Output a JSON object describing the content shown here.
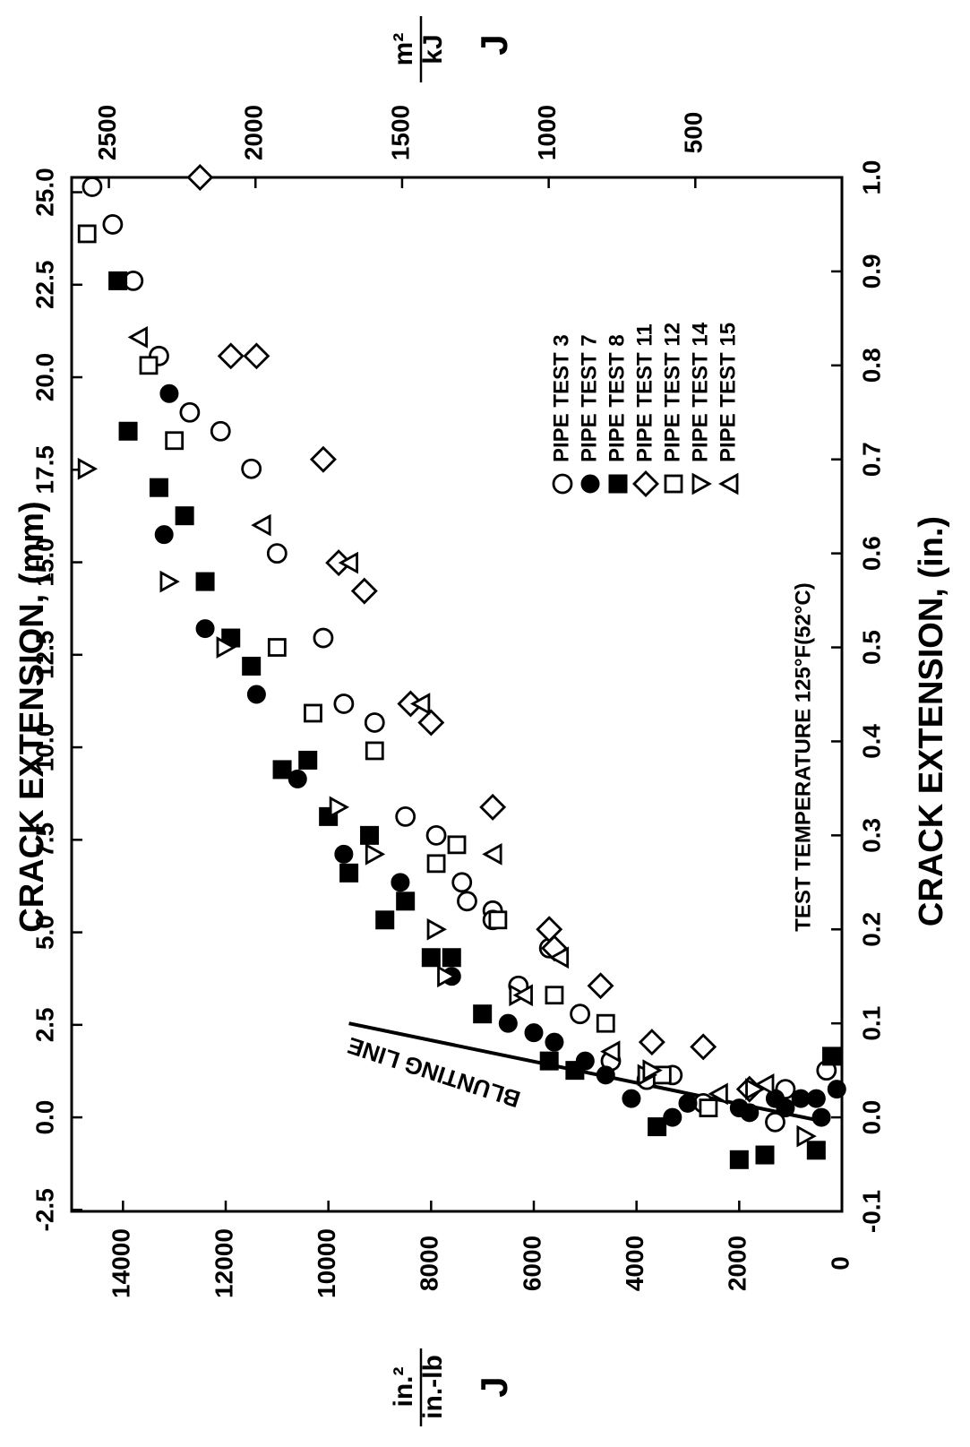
{
  "chart_data": {
    "type": "scatter",
    "orientation": "rotated-90-clockwise",
    "title": "",
    "axes": {
      "x_top": {
        "label": "CRACK EXTENSION, (mm)",
        "ticks": [
          "-2.5",
          "0.0",
          "2.5",
          "5.0",
          "7.5",
          "10.0",
          "12.5",
          "15.0",
          "17.5",
          "20.0",
          "22.5",
          "25.0"
        ],
        "range_mm": [
          -2.54,
          25.4
        ]
      },
      "x_bottom": {
        "label": "CRACK EXTENSION, (in.)",
        "ticks": [
          "-0.1",
          "0.0",
          "0.1",
          "0.2",
          "0.3",
          "0.4",
          "0.5",
          "0.6",
          "0.7",
          "0.8",
          "0.9",
          "1.0"
        ],
        "range": [
          -0.1,
          1.0
        ]
      },
      "y_left": {
        "label_symbol": "J",
        "label_num": "in.-lb",
        "label_den": "in.²",
        "ticks": [
          "0",
          "2000",
          "4000",
          "6000",
          "8000",
          "10000",
          "12000",
          "14000"
        ],
        "range": [
          0,
          15000
        ]
      },
      "y_right": {
        "label_symbol": "J",
        "label_num": "kJ",
        "label_den": "m²",
        "ticks": [
          "500",
          "1000",
          "1500",
          "2000",
          "2500"
        ]
      }
    },
    "legend": {
      "placement": "top-right",
      "entries": [
        {
          "label": "PIPE TEST  3",
          "marker": "circle-open"
        },
        {
          "label": "PIPE TEST  7",
          "marker": "circle-filled"
        },
        {
          "label": "PIPE TEST  8",
          "marker": "square-filled"
        },
        {
          "label": "PIPE TEST 11",
          "marker": "diamond-open"
        },
        {
          "label": "PIPE TEST 12",
          "marker": "square-open"
        },
        {
          "label": "PIPE TEST 14",
          "marker": "triangle-down-open"
        },
        {
          "label": "PIPE TEST 15",
          "marker": "triangle-up-open"
        }
      ]
    },
    "annotations": {
      "temperature": "TEST TEMPERATURE 125°F(52°C)",
      "blunting_line": "BLUNTING LINE"
    },
    "blunting_line": {
      "from": [
        -0.005,
        300
      ],
      "to": [
        0.1,
        9600
      ]
    },
    "series": [
      {
        "name": "PIPE TEST  3",
        "marker": "circle-open",
        "points": [
          [
            0.99,
            14600
          ],
          [
            0.95,
            14200
          ],
          [
            0.89,
            13800
          ],
          [
            0.81,
            13300
          ],
          [
            0.75,
            12700
          ],
          [
            0.73,
            12100
          ],
          [
            0.69,
            11500
          ],
          [
            0.6,
            11000
          ],
          [
            0.51,
            10100
          ],
          [
            0.44,
            9700
          ],
          [
            0.42,
            9100
          ],
          [
            0.32,
            8500
          ],
          [
            0.3,
            7900
          ],
          [
            0.25,
            7400
          ],
          [
            0.23,
            7300
          ],
          [
            0.22,
            6800
          ],
          [
            0.21,
            6800
          ],
          [
            0.18,
            5700
          ],
          [
            0.14,
            6300
          ],
          [
            0.11,
            5100
          ],
          [
            0.06,
            4500
          ],
          [
            0.04,
            3800
          ],
          [
            0.045,
            3300
          ],
          [
            0.015,
            2700
          ],
          [
            -0.005,
            1300
          ],
          [
            0.03,
            1100
          ],
          [
            0.05,
            300
          ]
        ]
      },
      {
        "name": "PIPE TEST  7",
        "marker": "circle-filled",
        "points": [
          [
            0.77,
            13100
          ],
          [
            0.62,
            13200
          ],
          [
            0.52,
            12400
          ],
          [
            0.45,
            11400
          ],
          [
            0.36,
            10600
          ],
          [
            0.28,
            9700
          ],
          [
            0.25,
            8600
          ],
          [
            0.15,
            7600
          ],
          [
            0.1,
            6500
          ],
          [
            0.09,
            6000
          ],
          [
            0.08,
            5600
          ],
          [
            0.06,
            5000
          ],
          [
            0.045,
            4600
          ],
          [
            0.02,
            4100
          ],
          [
            0.015,
            3000
          ],
          [
            0.01,
            2000
          ],
          [
            0.005,
            1800
          ],
          [
            0.0,
            3300
          ],
          [
            0.02,
            1300
          ],
          [
            0.01,
            1100
          ],
          [
            0.02,
            800
          ],
          [
            0.02,
            500
          ],
          [
            0.0,
            400
          ],
          [
            0.03,
            100
          ]
        ]
      },
      {
        "name": "PIPE TEST  8",
        "marker": "square-filled",
        "points": [
          [
            0.89,
            14100
          ],
          [
            0.73,
            13900
          ],
          [
            0.67,
            13300
          ],
          [
            0.64,
            12800
          ],
          [
            0.57,
            12400
          ],
          [
            0.51,
            11900
          ],
          [
            0.48,
            11500
          ],
          [
            0.37,
            10900
          ],
          [
            0.38,
            10400
          ],
          [
            0.32,
            10000
          ],
          [
            0.3,
            9200
          ],
          [
            0.26,
            9600
          ],
          [
            0.23,
            8500
          ],
          [
            0.21,
            8900
          ],
          [
            0.17,
            8000
          ],
          [
            0.17,
            7600
          ],
          [
            0.11,
            7000
          ],
          [
            0.06,
            5700
          ],
          [
            0.05,
            5200
          ],
          [
            -0.01,
            3600
          ],
          [
            -0.045,
            2000
          ],
          [
            -0.04,
            1500
          ],
          [
            -0.035,
            500
          ],
          [
            0.065,
            200
          ]
        ]
      },
      {
        "name": "PIPE TEST 11",
        "marker": "diamond-open",
        "points": [
          [
            1.0,
            12500
          ],
          [
            0.81,
            11900
          ],
          [
            0.81,
            11400
          ],
          [
            0.7,
            10100
          ],
          [
            0.59,
            9800
          ],
          [
            0.56,
            9300
          ],
          [
            0.44,
            8400
          ],
          [
            0.42,
            8000
          ],
          [
            0.33,
            6800
          ],
          [
            0.2,
            5700
          ],
          [
            0.18,
            5600
          ],
          [
            0.14,
            4700
          ],
          [
            0.08,
            3700
          ],
          [
            0.075,
            2700
          ],
          [
            0.03,
            1800
          ]
        ]
      },
      {
        "name": "PIPE TEST 12",
        "marker": "square-open",
        "points": [
          [
            0.94,
            14700
          ],
          [
            0.8,
            13500
          ],
          [
            0.72,
            13000
          ],
          [
            0.5,
            11000
          ],
          [
            0.43,
            10300
          ],
          [
            0.39,
            9100
          ],
          [
            0.29,
            7500
          ],
          [
            0.27,
            7900
          ],
          [
            0.21,
            6700
          ],
          [
            0.13,
            5600
          ],
          [
            0.1,
            4600
          ],
          [
            0.045,
            3500
          ],
          [
            0.01,
            2600
          ]
        ]
      },
      {
        "name": "PIPE TEST 14",
        "marker": "triangle-down-open",
        "points": [
          [
            0.69,
            14700
          ],
          [
            0.57,
            13100
          ],
          [
            0.5,
            12000
          ],
          [
            0.33,
            9800
          ],
          [
            0.28,
            9100
          ],
          [
            0.2,
            7900
          ],
          [
            0.15,
            7700
          ],
          [
            0.13,
            6300
          ],
          [
            0.045,
            3800
          ],
          [
            0.05,
            3700
          ],
          [
            0.03,
            1700
          ],
          [
            -0.02,
            700
          ]
        ]
      },
      {
        "name": "PIPE TEST 15",
        "marker": "triangle-up-open",
        "points": [
          [
            0.83,
            13700
          ],
          [
            0.63,
            11300
          ],
          [
            0.59,
            9600
          ],
          [
            0.44,
            8200
          ],
          [
            0.28,
            6800
          ],
          [
            0.17,
            5500
          ],
          [
            0.13,
            6200
          ],
          [
            0.07,
            4500
          ],
          [
            0.025,
            2400
          ],
          [
            0.035,
            1500
          ]
        ]
      }
    ]
  }
}
